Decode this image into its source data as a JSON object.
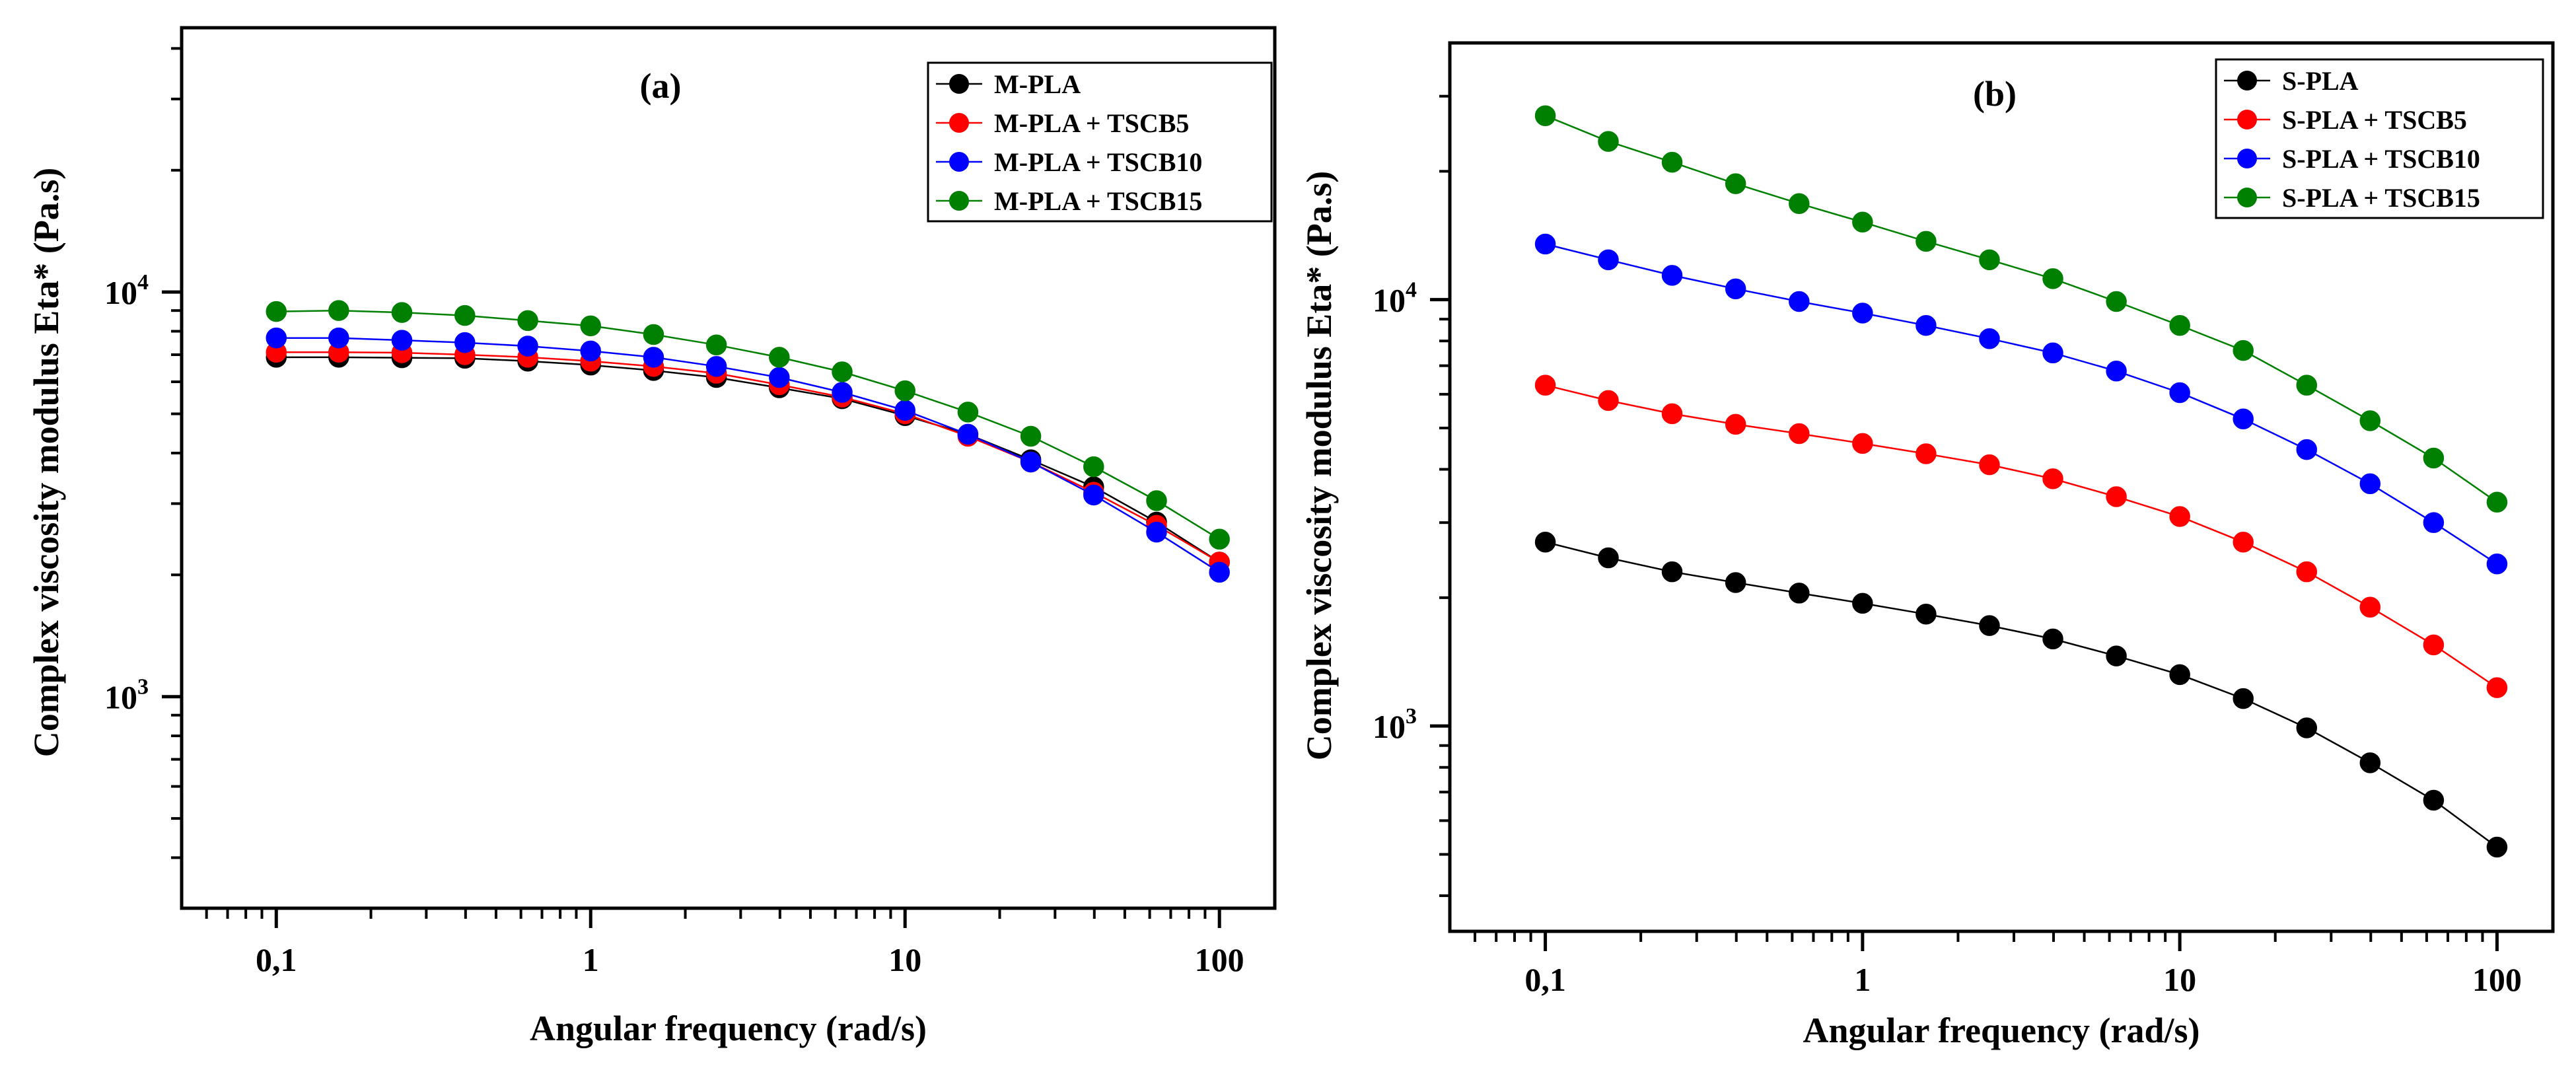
{
  "chart_data": [
    {
      "type": "line",
      "panel": "(a)",
      "title": "(a)",
      "xlabel": "Angular frequency (rad/s)",
      "ylabel": "Complex viscosity modulus Eta* (Pa.s)",
      "xscale": "log",
      "yscale": "log",
      "xlim": [
        0.05,
        150
      ],
      "ylim": [
        300,
        45000
      ],
      "x_ticks": [
        {
          "value": 0.1,
          "label": "0,1"
        },
        {
          "value": 1,
          "label": "1"
        },
        {
          "value": 10,
          "label": "10"
        },
        {
          "value": 100,
          "label": "100"
        }
      ],
      "y_ticks": [
        {
          "value": 1000,
          "mantissa": "10",
          "exponent": "3"
        },
        {
          "value": 10000,
          "mantissa": "10",
          "exponent": "4"
        }
      ],
      "legend_position": "top-right",
      "x": [
        0.1,
        0.158,
        0.251,
        0.398,
        0.631,
        1,
        1.585,
        2.512,
        3.981,
        6.31,
        10,
        15.85,
        25.12,
        39.81,
        63.1,
        100
      ],
      "series": [
        {
          "name": "M-PLA",
          "color": "#000000",
          "values": [
            6900,
            6900,
            6880,
            6860,
            6750,
            6600,
            6400,
            6150,
            5800,
            5450,
            4950,
            4450,
            3850,
            3300,
            2700,
            2150
          ]
        },
        {
          "name": "M-PLA + TSCB5",
          "color": "#ff0000",
          "values": [
            7100,
            7100,
            7080,
            7000,
            6900,
            6750,
            6550,
            6300,
            5900,
            5500,
            5000,
            4400,
            3800,
            3200,
            2650,
            2150
          ]
        },
        {
          "name": "M-PLA + TSCB10",
          "color": "#0000ff",
          "values": [
            7700,
            7700,
            7600,
            7500,
            7350,
            7150,
            6900,
            6550,
            6150,
            5650,
            5100,
            4450,
            3800,
            3150,
            2550,
            2030
          ]
        },
        {
          "name": "M-PLA + TSCB15",
          "color": "#008000",
          "values": [
            8950,
            9000,
            8900,
            8750,
            8500,
            8250,
            7850,
            7400,
            6900,
            6350,
            5700,
            5050,
            4400,
            3700,
            3050,
            2450
          ]
        }
      ]
    },
    {
      "type": "line",
      "panel": "(b)",
      "title": "(b)",
      "xlabel": "Angular frequency (rad/s)",
      "ylabel": "Complex viscosity modulus Eta* (Pa.s)",
      "xscale": "log",
      "yscale": "log",
      "xlim": [
        0.05,
        150
      ],
      "ylim": [
        330,
        40000
      ],
      "x_ticks": [
        {
          "value": 0.1,
          "label": "0,1"
        },
        {
          "value": 1,
          "label": "1"
        },
        {
          "value": 10,
          "label": "10"
        },
        {
          "value": 100,
          "label": "100"
        }
      ],
      "y_ticks": [
        {
          "value": 1000,
          "mantissa": "10",
          "exponent": "3"
        },
        {
          "value": 10000,
          "mantissa": "10",
          "exponent": "4"
        }
      ],
      "legend_position": "top-right",
      "x": [
        0.1,
        0.158,
        0.251,
        0.398,
        0.631,
        1,
        1.585,
        2.512,
        3.981,
        6.31,
        10,
        15.85,
        25.12,
        39.81,
        63.1,
        100
      ],
      "series": [
        {
          "name": "S-PLA",
          "color": "#000000",
          "values": [
            2700,
            2480,
            2300,
            2170,
            2050,
            1940,
            1830,
            1720,
            1600,
            1460,
            1320,
            1160,
            990,
            820,
            670,
            520
          ]
        },
        {
          "name": "S-PLA + TSCB5",
          "color": "#ff0000",
          "values": [
            6300,
            5800,
            5400,
            5100,
            4850,
            4600,
            4350,
            4100,
            3800,
            3450,
            3100,
            2700,
            2300,
            1900,
            1550,
            1230
          ]
        },
        {
          "name": "S-PLA + TSCB10",
          "color": "#0000ff",
          "values": [
            13500,
            12400,
            11400,
            10600,
            9900,
            9300,
            8700,
            8100,
            7500,
            6800,
            6050,
            5250,
            4450,
            3700,
            3000,
            2400
          ]
        },
        {
          "name": "S-PLA + TSCB15",
          "color": "#008000",
          "values": [
            27000,
            23500,
            21000,
            18700,
            16800,
            15200,
            13700,
            12400,
            11200,
            9900,
            8700,
            7600,
            6300,
            5200,
            4250,
            3350
          ]
        }
      ]
    }
  ]
}
